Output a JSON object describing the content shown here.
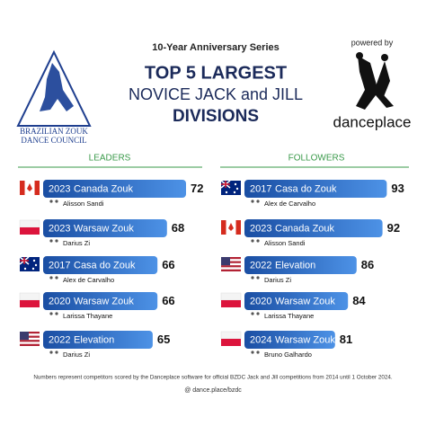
{
  "header": {
    "series": "10-Year Anniversary Series",
    "title_line1": "TOP 5 LARGEST",
    "title_line2": "NOVICE JACK and JILL",
    "title_line3": "DIVISIONS"
  },
  "logo": {
    "line1": "BRAZILIAN ZOUK",
    "line2": "DANCE COUNCIL"
  },
  "sponsor": {
    "powered_by": "powered by",
    "name": "danceplace"
  },
  "leaders": {
    "heading": "LEADERS",
    "entries": [
      {
        "year": "2023",
        "event": "Canada Zouk",
        "name": "Alisson Sandi",
        "count": 72
      },
      {
        "year": "2023",
        "event": "Warsaw Zouk",
        "name": "Darius Zi",
        "count": 68
      },
      {
        "year": "2017",
        "event": "Casa do Zouk",
        "name": "Alex de Carvalho",
        "count": 66
      },
      {
        "year": "2020",
        "event": "Warsaw Zouk",
        "name": "Larissa Thayane",
        "count": 66
      },
      {
        "year": "2022",
        "event": "Elevation",
        "name": "Darius Zi",
        "count": 65
      }
    ]
  },
  "followers": {
    "heading": "FOLLOWERS",
    "entries": [
      {
        "year": "2017",
        "event": "Casa do Zouk",
        "name": "Alex de Carvalho",
        "count": 93
      },
      {
        "year": "2023",
        "event": "Canada Zouk",
        "name": "Alisson Sandi",
        "count": 92
      },
      {
        "year": "2022",
        "event": "Elevation",
        "name": "Darius Zi",
        "count": 86
      },
      {
        "year": "2020",
        "event": "Warsaw Zouk",
        "name": "Larissa Thayane",
        "count": 84
      },
      {
        "year": "2024",
        "event": "Warsaw Zouk",
        "name": "Bruno Galhardo",
        "count": 81
      }
    ]
  },
  "footnote": "Numbers represent competitors scored by the Danceplace software for official BZDC Jack and Jill competitions from 2014 until 1 October 2024.",
  "credit": "@ dance.place/bzdc"
}
